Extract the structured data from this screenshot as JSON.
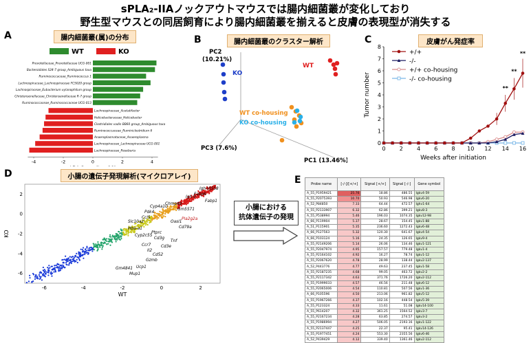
{
  "header": {
    "line1": "sPLA₂-IIAノックアウトマウスでは腸内細菌叢が変化しており",
    "line2": "野生型マウスとの同居飼育により腸内細菌叢を揃えると皮膚の表現型が消失する"
  },
  "panelA": {
    "letter": "A",
    "title": "腸内細菌叢(属)の分布",
    "legend_wt": "WT",
    "legend_ko": "KO",
    "xlabel": "LDA Score (Log 10)",
    "ticks": [
      "-4",
      "-2",
      "0",
      "2",
      "4"
    ],
    "colors": {
      "wt": "#2e8b2e",
      "ko": "#e02020"
    },
    "wt_taxa": [
      {
        "label": "Prevotellaceae_Prevotellaceae UCG-001",
        "value": 4.3
      },
      {
        "label": "Bacteroidales S24-7 group_Ambiguous taxa",
        "value": 4.2
      },
      {
        "label": "Ruminococcaceae_Ruminococcus 1",
        "value": 3.6
      },
      {
        "label": "Lachnospiraceae_Lachnospiraceae FCS020 group",
        "value": 3.9
      },
      {
        "label": "Lachnospiraceae_Eubacterium xylanophilum group",
        "value": 3.4
      },
      {
        "label": "Christensenellaceae_Christensenellaceae R-7 group",
        "value": 3.2
      },
      {
        "label": "Ruminococcaceae_Ruminococcaceae UCG-013",
        "value": 3.0
      }
    ],
    "ko_taxa": [
      {
        "label": "Lachnospiraceae_Acetatifactor",
        "value": -3.0
      },
      {
        "label": "Helicobacteraceae_Helicobacter",
        "value": -3.2
      },
      {
        "label": "Clostridiales vadin BB60 group_Ambiguous taxa",
        "value": -3.3
      },
      {
        "label": "Ruminococcaceae_Ruminiclostridium 6",
        "value": -3.4
      },
      {
        "label": "Anaeroplasmataceae_Anaeroplasma",
        "value": -3.6
      },
      {
        "label": "Lachnospiraceae_Lachnospiraceae UCG-001",
        "value": -3.9
      },
      {
        "label": "Lachnospiraceae_Roseburia",
        "value": -4.3
      }
    ]
  },
  "panelB": {
    "letter": "B",
    "title": "腸内細菌叢のクラスター解析",
    "pc1": "PC1 (13.46%)",
    "pc2": "PC2\n(10.21%)",
    "pc3": "PC3 (7.6%)",
    "label_wt": "WT",
    "label_ko": "KO",
    "label_wt_co": "WT co-housing",
    "label_ko_co": "KO co-housing",
    "colors": {
      "wt": "#e02020",
      "ko": "#1e3fc8",
      "wt_co": "#f0901e",
      "ko_co": "#2ab0e8"
    }
  },
  "panelC": {
    "letter": "C",
    "title": "皮膚がん発症率",
    "ylabel": "Tumor number",
    "xlabel": "Weeks after initiation",
    "legend": [
      "+/+",
      "-/-",
      "+/+  co-housing",
      "-/-  co-housing"
    ],
    "significance": "**",
    "chart_data": {
      "type": "line",
      "x": [
        0,
        1,
        2,
        3,
        4,
        5,
        6,
        7,
        8,
        9,
        10,
        11,
        12,
        13,
        14,
        15,
        16
      ],
      "xticks": [
        0,
        2,
        4,
        6,
        8,
        10,
        12,
        14,
        16
      ],
      "yticks": [
        0,
        1,
        2,
        3,
        4,
        5,
        6,
        7,
        8
      ],
      "ylim": [
        0,
        8
      ],
      "series": [
        {
          "name": "+/+",
          "color": "#a01010",
          "values": [
            0,
            0,
            0,
            0,
            0,
            0,
            0,
            0,
            0,
            0,
            0.4,
            1.0,
            1.4,
            2.0,
            3.3,
            4.5,
            5.8
          ]
        },
        {
          "name": "-/-",
          "color": "#1a1a60",
          "values": [
            0,
            0,
            0,
            0,
            0,
            0,
            0,
            0,
            0,
            0,
            0,
            0,
            0,
            0.1,
            0.3,
            0.7,
            0.8
          ]
        },
        {
          "name": "+/+  co-housing",
          "color": "#d88a8a",
          "values": [
            0,
            0,
            0,
            0,
            0,
            0,
            0,
            0,
            0,
            0,
            0,
            0,
            0.1,
            0.3,
            0.5,
            0.9,
            0.9
          ]
        },
        {
          "name": "-/-  co-housing",
          "color": "#7ab8e8",
          "values": [
            0,
            0,
            0,
            0,
            0,
            0,
            0,
            0,
            0,
            0,
            0,
            0,
            0,
            0,
            0,
            0,
            0
          ]
        }
      ]
    }
  },
  "panelD": {
    "letter": "D",
    "title": "小腸の遺伝子発現解析(マイクロアレイ)",
    "xlabel": "WT",
    "ylabel": "KO",
    "ticks": [
      "-6",
      "-4",
      "-2",
      "0",
      "2"
    ],
    "genes": [
      "Igh-VJ558",
      "Fabp6",
      "Igh-V",
      "Fabp1",
      "Pla2g2a",
      "Chmp4b",
      "Pdk4",
      "Ccl5",
      "Cyp4a10",
      "Gm5571",
      "Slc10a2",
      "Hba-a1",
      "Cyp2c55",
      "Ptprc",
      "Cd3g",
      "Ccr7",
      "Il2",
      "Cd3e",
      "Cd52",
      "Gzmb",
      "Gm4841",
      "Mup1",
      "Ucp1",
      "Tnf",
      "Cd79a",
      "Oasl1"
    ]
  },
  "callout": {
    "line1": "小腸における",
    "line2": "抗体遺伝子の発現"
  },
  "panelE": {
    "letter": "E",
    "headers": [
      "Probe name",
      "[-/-]/[+/+]",
      "Signal\n[+/+]",
      "Signal\n[-/-]",
      "Gene symbol"
    ],
    "rows": [
      [
        "A_55_P1959421",
        "25.76",
        "18.86",
        "486.55",
        "Igkv4-59"
      ],
      [
        "A_55_P2075393",
        "10.70",
        "50.93",
        "546.98",
        "Igkv6-20"
      ],
      [
        "A_52_P84850",
        "7.33",
        "64.44",
        "472.57",
        "Ighv1-64"
      ],
      [
        "A_55_P2133907",
        "6.32",
        "62.86",
        "399.21",
        "Igkv8-3"
      ],
      [
        "A_55_P538994",
        "5.46",
        "196.03",
        "1074.35",
        "Igkv12-98"
      ],
      [
        "A_66_P119904",
        "5.37",
        "28.67",
        "154.45",
        "Igkv1-88"
      ],
      [
        "A_51_P115901",
        "5.35",
        "236.60",
        "1272.43",
        "Igkv6-48"
      ],
      [
        "A_66_P127563",
        "5.32",
        "120.30",
        "641.67",
        "Igkv4-54"
      ],
      [
        "A_66_P103124",
        "5.16",
        "24.35",
        "126.65",
        "Igkv9-4"
      ],
      [
        "A_55_P2149206",
        "5.14",
        "26.06",
        "134.46",
        "Igkv1-121"
      ],
      [
        "A_55_P2047974",
        "4.95",
        "157.57",
        "779.48",
        "Igkv1-4"
      ],
      [
        "A_55_P2164102",
        "4.92",
        "16.27",
        "78.74",
        "Igkv1-12"
      ],
      [
        "A_55_P2067620",
        "4.78",
        "28.99",
        "138.44",
        "Igkv2-137"
      ],
      [
        "A_52_P443776",
        "4.77",
        "49.63",
        "237.45",
        "Igkv1-58"
      ],
      [
        "A_55_P2187235",
        "4.68",
        "99.05",
        "463.72",
        "Igkv2-2"
      ],
      [
        "A_55_P2117342",
        "4.63",
        "371.76",
        "1726.20",
        "Igkv2-112"
      ],
      [
        "A_55_P1999033",
        "4.57",
        "46.56",
        "211.48",
        "Igkv6-12"
      ],
      [
        "A_55_P2065006",
        "4.54",
        "110.81",
        "507.56",
        "Igkv1-36"
      ],
      [
        "A_66_P105596",
        "4.50",
        "213.06",
        "961.82",
        "Igkv5-12"
      ],
      [
        "A_55_P1967266",
        "4.37",
        "102.16",
        "448.54",
        "Igkv5-39"
      ],
      [
        "A_55_P123324",
        "4.33",
        "11.61",
        "51.08",
        "Igkv14-100"
      ],
      [
        "A_55_P614207",
        "4.32",
        "361.25",
        "1564.52",
        "Igkv3-7"
      ],
      [
        "A_55_P2167234",
        "4.28",
        "63.85",
        "274.57",
        "Igkv3-2"
      ],
      [
        "A_55_P1986994",
        "4.27",
        "506.05",
        "2193.16",
        "Igkv1-122"
      ],
      [
        "A_55_P2137447",
        "4.25",
        "22.37",
        "95.41",
        "Igkv14-126"
      ],
      [
        "A_55_P1977451",
        "4.24",
        "553.30",
        "2355.56",
        "Igkv6-46"
      ],
      [
        "A_52_P439429",
        "4.12",
        "339.40",
        "1361.46",
        "Igkv2-112"
      ]
    ]
  }
}
